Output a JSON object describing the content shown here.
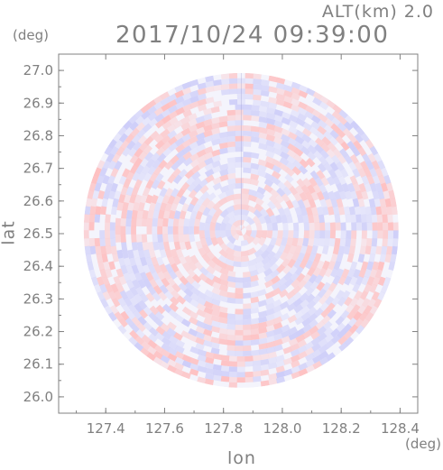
{
  "header": {
    "altitude_label": "ALT(km) 2.0",
    "timestamp": "2017/10/24 09:39:00"
  },
  "chart_data": {
    "type": "heatmap",
    "title": "2017/10/24 09:39:00",
    "subtitle": "ALT(km) 2.0",
    "xlabel": "lon",
    "ylabel": "lat",
    "x_unit": "(deg)",
    "y_unit": "(deg)",
    "xlim": [
      127.24,
      128.46
    ],
    "ylim": [
      25.95,
      27.05
    ],
    "x_ticks": [
      "127.4",
      "127.6",
      "127.8",
      "128.0",
      "128.2",
      "128.4"
    ],
    "y_ticks": [
      "26.0",
      "26.1",
      "26.2",
      "26.3",
      "26.4",
      "26.5",
      "26.6",
      "26.7",
      "26.8",
      "26.9",
      "27.0"
    ],
    "radar_center": {
      "lon": 127.86,
      "lat": 26.51
    },
    "radar_range_deg": 0.535,
    "grid": false,
    "colors": {
      "positive": "#ffb8b8",
      "negative": "#c8c8f8",
      "axes": "#808080"
    }
  }
}
